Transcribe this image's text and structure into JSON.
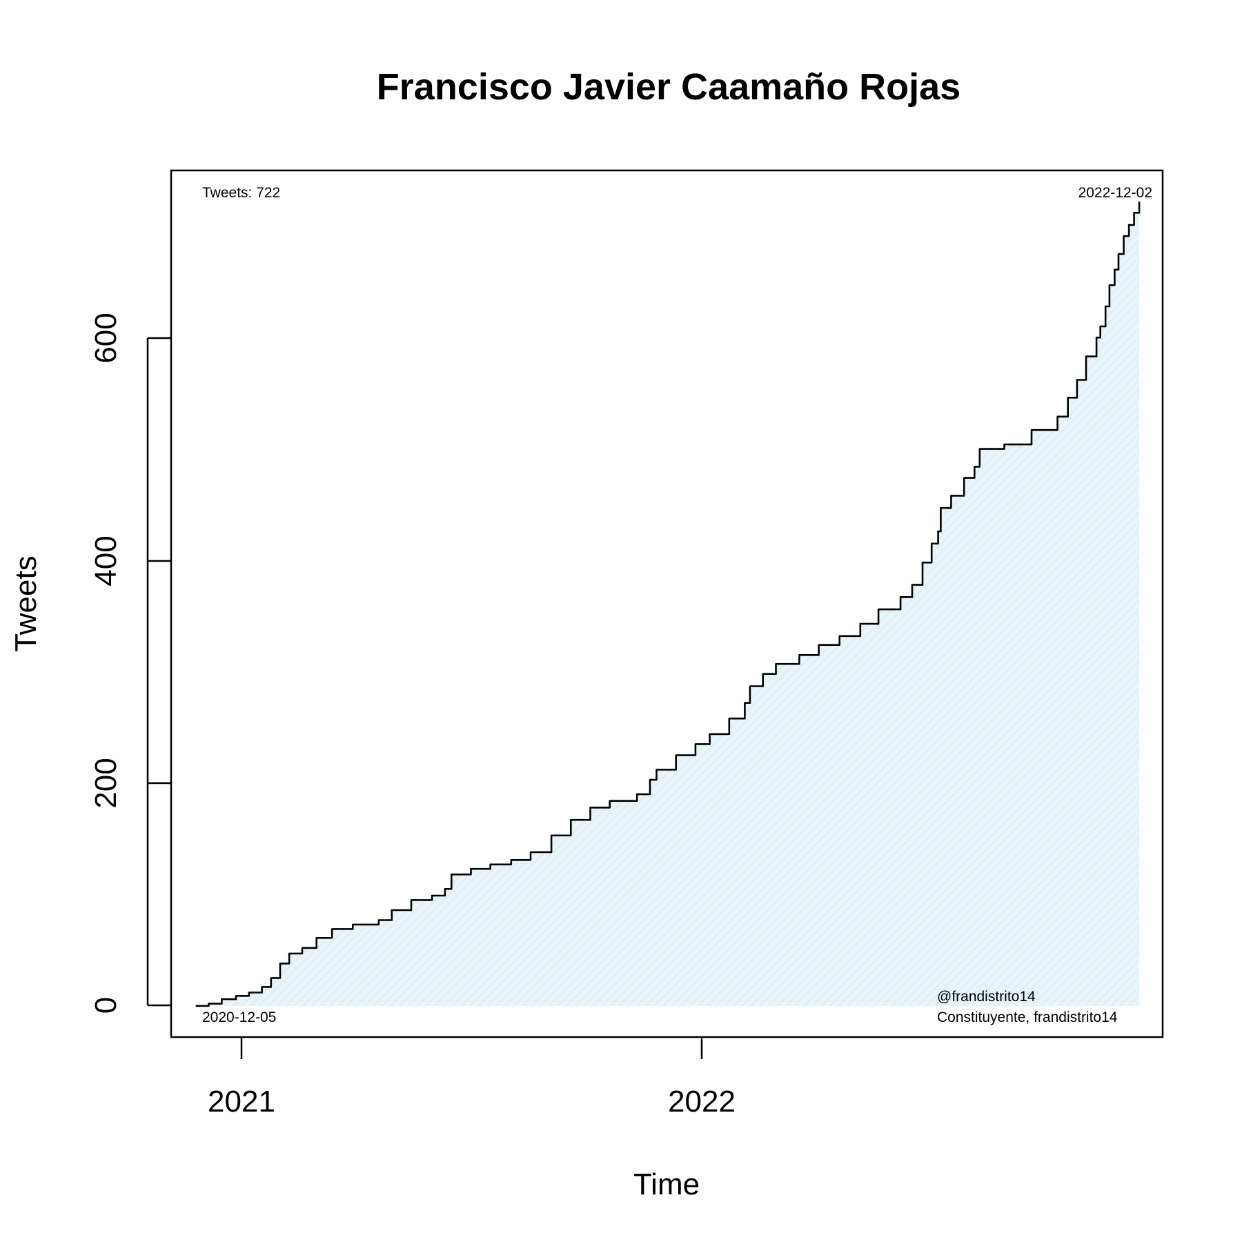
{
  "chart_data": {
    "type": "area",
    "title": "Francisco Javier Caamaño Rojas",
    "xlabel": "Time",
    "ylabel": "Tweets",
    "x_ticks": [
      "2021",
      "2022"
    ],
    "y_ticks": [
      "0",
      "200",
      "400",
      "600"
    ],
    "ylim": [
      -28,
      750
    ],
    "xlim": [
      "2020-11-16",
      "2022-12-20"
    ],
    "grid": false,
    "colors": {
      "line": "#000000",
      "fill": "#e8f4f8",
      "fill_hatch": "#d3e8f0"
    },
    "annotations": {
      "top_left": "Tweets: 722",
      "top_right": "2022-12-02",
      "bottom_left": "2020-12-05",
      "bottom_right_1": "@frandistrito14",
      "bottom_right_2": "Constituyente, frandistrito14"
    },
    "series": [
      {
        "points": [
          [
            "2020-12-05",
            0
          ],
          [
            "2020-12-15",
            2
          ],
          [
            "2020-12-25",
            6
          ],
          [
            "2021-01-05",
            9
          ],
          [
            "2021-01-15",
            12
          ],
          [
            "2021-01-25",
            17
          ],
          [
            "2021-02-01",
            25
          ],
          [
            "2021-02-08",
            38
          ],
          [
            "2021-02-15",
            47
          ],
          [
            "2021-02-25",
            52
          ],
          [
            "2021-03-08",
            61
          ],
          [
            "2021-03-20",
            69
          ],
          [
            "2021-04-05",
            73
          ],
          [
            "2021-04-25",
            77
          ],
          [
            "2021-05-05",
            86
          ],
          [
            "2021-05-20",
            95
          ],
          [
            "2021-06-05",
            99
          ],
          [
            "2021-06-15",
            105
          ],
          [
            "2021-06-20",
            118
          ],
          [
            "2021-07-05",
            123
          ],
          [
            "2021-07-20",
            127
          ],
          [
            "2021-08-05",
            131
          ],
          [
            "2021-08-20",
            138
          ],
          [
            "2021-09-05",
            153
          ],
          [
            "2021-09-20",
            167
          ],
          [
            "2021-10-05",
            178
          ],
          [
            "2021-10-20",
            184
          ],
          [
            "2021-11-10",
            190
          ],
          [
            "2021-11-20",
            203
          ],
          [
            "2021-11-25",
            212
          ],
          [
            "2021-12-10",
            225
          ],
          [
            "2021-12-25",
            235
          ],
          [
            "2022-01-05",
            244
          ],
          [
            "2022-01-20",
            258
          ],
          [
            "2022-02-01",
            272
          ],
          [
            "2022-02-05",
            287
          ],
          [
            "2022-02-15",
            298
          ],
          [
            "2022-02-25",
            307
          ],
          [
            "2022-03-15",
            315
          ],
          [
            "2022-03-30",
            324
          ],
          [
            "2022-04-15",
            332
          ],
          [
            "2022-05-01",
            343
          ],
          [
            "2022-05-15",
            356
          ],
          [
            "2022-06-01",
            367
          ],
          [
            "2022-06-10",
            378
          ],
          [
            "2022-06-18",
            398
          ],
          [
            "2022-06-25",
            415
          ],
          [
            "2022-06-30",
            426
          ],
          [
            "2022-07-02",
            447
          ],
          [
            "2022-07-10",
            458
          ],
          [
            "2022-07-20",
            474
          ],
          [
            "2022-07-28",
            484
          ],
          [
            "2022-08-01",
            500
          ],
          [
            "2022-08-20",
            504
          ],
          [
            "2022-09-10",
            517
          ],
          [
            "2022-09-30",
            529
          ],
          [
            "2022-10-08",
            546
          ],
          [
            "2022-10-15",
            562
          ],
          [
            "2022-10-22",
            583
          ],
          [
            "2022-10-30",
            600
          ],
          [
            "2022-11-02",
            610
          ],
          [
            "2022-11-06",
            628
          ],
          [
            "2022-11-09",
            647
          ],
          [
            "2022-11-13",
            661
          ],
          [
            "2022-11-16",
            675
          ],
          [
            "2022-11-20",
            691
          ],
          [
            "2022-11-24",
            701
          ],
          [
            "2022-11-28",
            712
          ],
          [
            "2022-12-02",
            722
          ]
        ]
      }
    ]
  }
}
